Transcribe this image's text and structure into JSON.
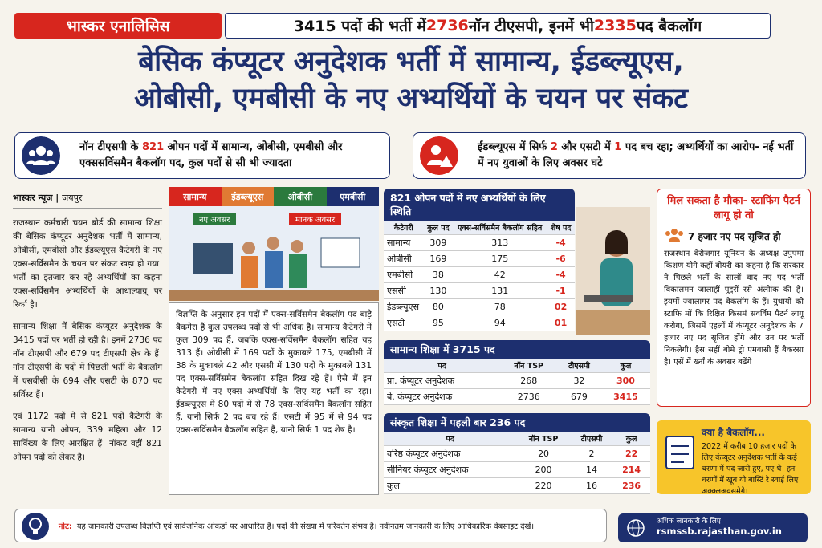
{
  "header": {
    "tag": "भास्कर एनालिसिस",
    "headline": [
      "3415 पदों की भर्ती में ",
      "2736",
      " नॉन टीएसपी, इनमें भी ",
      "2335",
      " पद बैकलॉग"
    ],
    "title": [
      "बेसिक कंप्यूटर अनुदेशक भर्ती में सामान्य, ईडब्ल्यूएस,",
      "ओबीसी, एमबीसी के नए अभ्यर्थियों के चयन पर संकट"
    ]
  },
  "highlights": [
    {
      "parts": [
        "नॉन टीएसपी के ",
        "821",
        " ओपन पदों में सामान्य, ओबीसी, एमबीसी और एक्ससर्विसमैन बैकलॉग पद, कुल पदों से सी भी ज्यादता"
      ]
    },
    {
      "parts": [
        "ईडब्ल्यूएस में सिर्फ ",
        "2",
        " और एसटी में ",
        "1",
        " पद बच रहा; अभ्यर्थियों का आरोप- नई भर्ती में नए युवाओं के लिए अवसर घटे"
      ]
    }
  ],
  "article": {
    "byline": "भास्कर न्यूज",
    "place": "जयपुर",
    "paragraphs": [
      "राजस्थान कर्मचारी चयन बोर्ड की सामान्य शिक्षा की बेसिक कंप्यूटर अनुदेशक भर्ती में सामान्य, ओबीसी, एमबीसी और ईडब्ल्यूएस कैटेगरी के नए एक्स-सर्विसमैन के चयन पर संकट खड़ा हो गया। भर्ती का इंतजार कर रहे अभ्यर्थियों का कहना एक्स-सर्विसमैन अभ्यर्थियों के आधाल्याग्र् पर रिर्का है।",
      "सामान्य शिक्षा में बेसिक कंप्यूटर अनुदेशक के 3415 पदों पर भर्ती हो रही है। इनमें 2736 पद नॉन टीएसपी और 679 पद टीएसपी क्षेत्र के हैं। नॉन टीएसपी के पदों में पिछली भर्ती के बैकलॉग में एसबीसी के 694 और एसटी के 870 पद सर्विस्ट हैं।",
      "एवं 1172 पदों में से 821 पदों कैटेगरी के सामान्य यानी ओपन, 339 महिला और 12 सार्विख्य के लिए आरक्षित हैं। नॉकट वहीं 821 ओपन पदों को लेकर है।"
    ],
    "box_text": "विज्ञप्ति के अनुसार इन पदों में एक्स-सर्विसमैन बैकलॉग पद बाड़े बैकगेरा हैं कुल उपलब्ध पदों से भी अधिक है। सामान्य कैटेगरी में कुल 309 पद हैं, जबकि एक्स-सर्विसमैन बैकलॉग सहित यह 313 हैं। ओबीसी में 169 पदों के मुकाबले 175, एमबीसी में 38 के मुकाबले 42 और एससी में 130 पदों के मुकाबले 131 पद एक्स-सर्विसमैन बैकलॉग सहित दिख रहे हैं। ऐसे में इन कैटेगरी में नए एक्स अभ्यर्थियों के लिए यह भर्ती का रहा। ईडब्ल्यूएस में 80 पदों में से 78 एक्स-सर्विसमैन बैकलॉग सहित हैं, यानी सिर्फ 2 पद बच रहे हैं। एसटी में 95 में से 94 पद एक्स-सर्विसमैन बैकलॉग सहित हैं, यानी सिर्फ 1 पद शेष है।"
  },
  "illustration": {
    "tabs": [
      "सामान्य",
      "ईडब्ल्यूएस",
      "ओबीसी",
      "एमबीसी"
    ],
    "labels": [
      "नए अवसर",
      "मानक अवसर"
    ]
  },
  "tables": [
    {
      "title": "821 ओपन पदों में नए अभ्यर्थियों के लिए स्थिति",
      "headers": [
        "कैटेगरी",
        "कुल पद",
        "एक्स-सर्विसमैन बैकलॉग सहित",
        "शेष पद"
      ],
      "rows": [
        [
          "सामान्य",
          "309",
          "313",
          "-4"
        ],
        [
          "ओबीसी",
          "169",
          "175",
          "-6"
        ],
        [
          "एमबीसी",
          "38",
          "42",
          "-4"
        ],
        [
          "एससी",
          "130",
          "131",
          "-1"
        ],
        [
          "ईडब्ल्यूएस",
          "80",
          "78",
          "02"
        ],
        [
          "एसटी",
          "95",
          "94",
          "01"
        ]
      ]
    },
    {
      "title": "सामान्य शिक्षा में 3715 पद",
      "headers": [
        "पद",
        "नॉन TSP",
        "टीएसपी",
        "कुल"
      ],
      "rows": [
        [
          "प्रा. कंप्यूटर अनुदेशक",
          "268",
          "32",
          "300"
        ],
        [
          "बे. कंप्यूटर अनुदेशक",
          "2736",
          "679",
          "3415"
        ]
      ]
    },
    {
      "title": "संस्कृत शिक्षा में पहली बार 236 पद",
      "headers": [
        "पद",
        "नॉन TSP",
        "टीएसपी",
        "कुल"
      ],
      "rows": [
        [
          "वरिष्ठ कंप्यूटर अनुदेशक",
          "20",
          "2",
          "22"
        ],
        [
          "सीनियर कंप्यूटर अनुदेशक",
          "200",
          "14",
          "214"
        ],
        [
          "कुल",
          "220",
          "16",
          "236"
        ]
      ]
    }
  ],
  "sidebar": {
    "title": "मिल सकता है मौका- स्टाफिंग पैटर्न लागू हो तो",
    "subtitle": "7 हजार नए पद सृजित हो",
    "text": "राजस्थान बेरोजगार यूनियन के अध्यक्ष उपुपमा किशण योगे कहों बोयरी का कहना है कि सरकार ने पिछले भर्ती के सालों बाद नए पद भर्ती विकालमन जालाहीं पुद्दरों रसे अंलोांक की है। इयमों ज्वालागर पद बैकलॉग के हैं। युथायों को स्टाफि मों कि रिक्षित किसमं सवर्विम पैटर्न लागू करोगा, जिसमें एहलों में कंप्यूटर अनुदेशक के 7 हजार नए पद सृजित होंगे और उन पर भर्ती निकलेगी। हैस सहीं बोमे ट्रो एमवासी हैं बैकरसा है। एसें में र्ख्नां कं अवसर बढेंगे"
  },
  "backlog": {
    "title": "क्या है बैकलॉग...",
    "text": "2022 में करीब 10 हजार पदों के लिए कंप्यूटर अनुदेशक भर्ती के कई चरणा में पद जारी हुए, पए थे। हन चरणों में खूब यो बास्टिं रे स्वाई लिए अक्क्लअवसमेगे।"
  },
  "footer": {
    "note_label": "नोट:",
    "note": "यह जानकारी उपलब्ध विज्ञप्ति एवं सार्वजनिक आंकड़ों पर आधारित है। पदों की संख्या में परिवर्तन संभव है। नवीनतम जानकारी के लिए आधिकारिक वेबसाइट देखें।",
    "more_info": "अधिक जानकारी के लिए",
    "website": "rsmssb.rajasthan.gov.in"
  }
}
